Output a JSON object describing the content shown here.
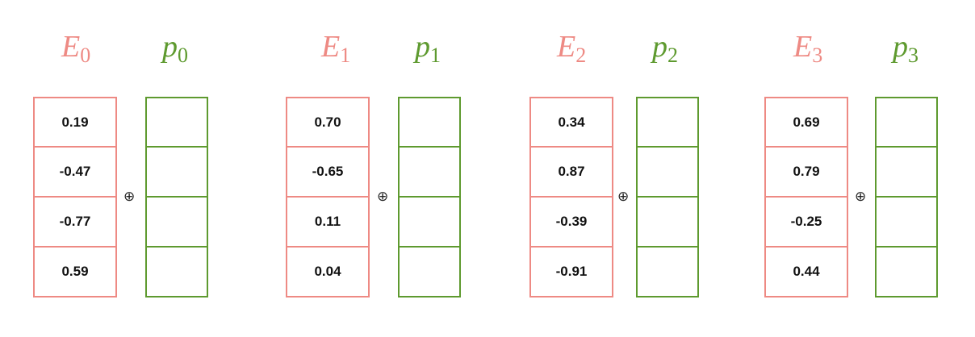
{
  "groups": [
    {
      "e_label": {
        "letter": "E",
        "sub": "0"
      },
      "p_label": {
        "letter": "p",
        "sub": "0"
      },
      "values": [
        "0.19",
        "-0.47",
        "-0.77",
        "0.59"
      ],
      "operator": "⊕"
    },
    {
      "e_label": {
        "letter": "E",
        "sub": "1"
      },
      "p_label": {
        "letter": "p",
        "sub": "1"
      },
      "values": [
        "0.70",
        "-0.65",
        "0.11",
        "0.04"
      ],
      "operator": "⊕"
    },
    {
      "e_label": {
        "letter": "E",
        "sub": "2"
      },
      "p_label": {
        "letter": "p",
        "sub": "2"
      },
      "values": [
        "0.34",
        "0.87",
        "-0.39",
        "-0.91"
      ],
      "operator": "⊕"
    },
    {
      "e_label": {
        "letter": "E",
        "sub": "3"
      },
      "p_label": {
        "letter": "p",
        "sub": "3"
      },
      "values": [
        "0.69",
        "0.79",
        "-0.25",
        "0.44"
      ],
      "operator": "⊕"
    }
  ],
  "colors": {
    "embedding": "#ee8a84",
    "position": "#5e9a2f"
  }
}
